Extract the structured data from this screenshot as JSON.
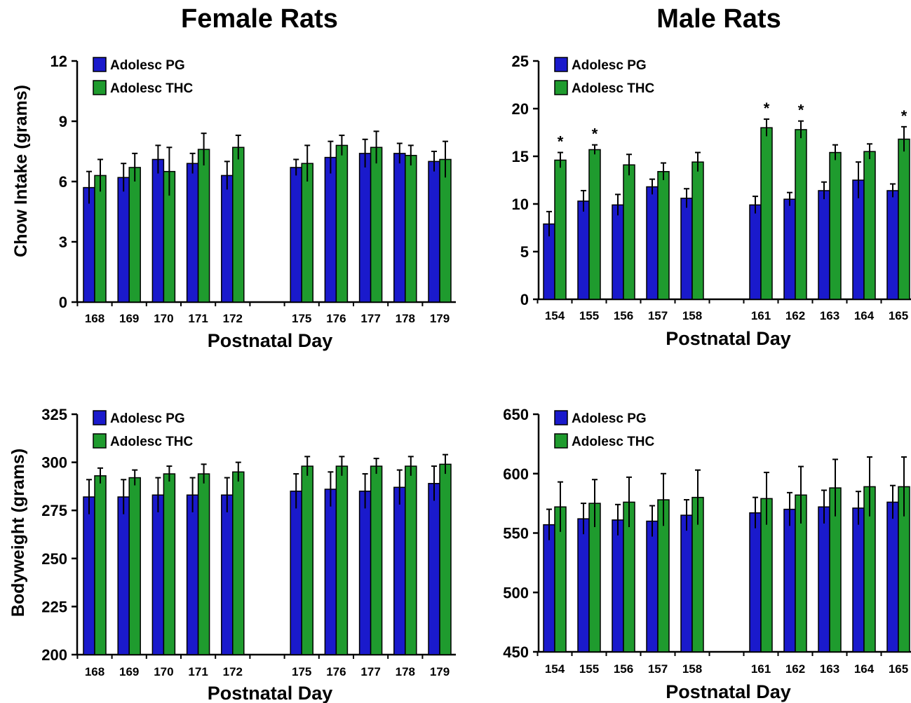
{
  "titles": {
    "female": "Female Rats",
    "male": "Male Rats"
  },
  "colors": {
    "pg": "#1a1acc",
    "thc": "#1f9b2e"
  },
  "chart_data": [
    {
      "id": "female-intake",
      "type": "bar",
      "ylabel": "Chow Intake (grams)",
      "xlabel": "Postnatal Day",
      "ylim": [
        0,
        12
      ],
      "yticks": [
        "0",
        "3",
        "6",
        "9",
        "12"
      ],
      "categories": [
        "168",
        "169",
        "170",
        "171",
        "172",
        "",
        "175",
        "176",
        "177",
        "178",
        "179"
      ],
      "legend": "top-left",
      "series": [
        {
          "name": "Adolesc PG",
          "values": [
            5.7,
            6.2,
            7.1,
            6.9,
            6.3,
            null,
            6.7,
            7.2,
            7.4,
            7.4,
            7.0
          ],
          "errors": [
            0.8,
            0.7,
            0.7,
            0.5,
            0.7,
            null,
            0.4,
            0.8,
            0.7,
            0.5,
            0.5
          ]
        },
        {
          "name": "Adolesc THC",
          "values": [
            6.3,
            6.7,
            6.5,
            7.6,
            7.7,
            null,
            6.9,
            7.8,
            7.7,
            7.3,
            7.1
          ],
          "errors": [
            0.8,
            0.7,
            1.2,
            0.8,
            0.6,
            null,
            0.9,
            0.5,
            0.8,
            0.5,
            0.9
          ]
        }
      ],
      "annotations": []
    },
    {
      "id": "male-intake",
      "type": "bar",
      "ylabel": "",
      "xlabel": "Postnatal Day",
      "ylim": [
        0,
        25
      ],
      "yticks": [
        "0",
        "5",
        "10",
        "15",
        "20",
        "25"
      ],
      "categories": [
        "154",
        "155",
        "156",
        "157",
        "158",
        "",
        "161",
        "162",
        "163",
        "164",
        "165"
      ],
      "legend": "top-left",
      "series": [
        {
          "name": "Adolesc PG",
          "values": [
            7.9,
            10.3,
            9.9,
            11.8,
            10.6,
            null,
            9.9,
            10.5,
            11.4,
            12.5,
            11.4
          ],
          "errors": [
            1.3,
            1.1,
            1.1,
            0.8,
            1.0,
            null,
            0.9,
            0.7,
            0.9,
            1.9,
            0.7
          ]
        },
        {
          "name": "Adolesc THC",
          "values": [
            14.6,
            15.7,
            14.1,
            13.4,
            14.4,
            null,
            18.0,
            17.8,
            15.4,
            15.5,
            16.8
          ],
          "errors": [
            0.8,
            0.5,
            1.1,
            0.9,
            1.0,
            null,
            0.9,
            0.9,
            0.8,
            0.8,
            1.3
          ]
        }
      ],
      "annotations": [
        {
          "category": "154",
          "text": "*"
        },
        {
          "category": "155",
          "text": "*"
        },
        {
          "category": "161",
          "text": "*"
        },
        {
          "category": "162",
          "text": "*"
        },
        {
          "category": "165",
          "text": "*"
        }
      ]
    },
    {
      "id": "female-weight",
      "type": "bar",
      "ylabel": "Bodyweight (grams)",
      "xlabel": "Postnatal Day",
      "ylim": [
        200,
        325
      ],
      "yticks": [
        "200",
        "225",
        "250",
        "275",
        "300",
        "325"
      ],
      "categories": [
        "168",
        "169",
        "170",
        "171",
        "172",
        "",
        "175",
        "176",
        "177",
        "178",
        "179"
      ],
      "legend": "top-left",
      "series": [
        {
          "name": "Adolesc PG",
          "values": [
            282,
            282,
            283,
            283,
            283,
            null,
            285,
            286,
            285,
            287,
            289
          ],
          "errors": [
            9,
            9,
            9,
            9,
            9,
            null,
            9,
            9,
            9,
            9,
            9
          ]
        },
        {
          "name": "Adolesc THC",
          "values": [
            293,
            292,
            294,
            294,
            295,
            null,
            298,
            298,
            298,
            298,
            299
          ],
          "errors": [
            4,
            4,
            4,
            5,
            5,
            null,
            5,
            5,
            4,
            5,
            5
          ]
        }
      ],
      "annotations": []
    },
    {
      "id": "male-weight",
      "type": "bar",
      "ylabel": "",
      "xlabel": "Postnatal Day",
      "ylim": [
        450,
        650
      ],
      "yticks": [
        "450",
        "500",
        "550",
        "600",
        "650"
      ],
      "categories": [
        "154",
        "155",
        "156",
        "157",
        "158",
        "",
        "161",
        "162",
        "163",
        "164",
        "165"
      ],
      "legend": "top-left",
      "series": [
        {
          "name": "Adolesc PG",
          "values": [
            557,
            562,
            561,
            560,
            565,
            null,
            567,
            570,
            572,
            571,
            576
          ],
          "errors": [
            13,
            13,
            13,
            13,
            13,
            null,
            13,
            14,
            14,
            14,
            14
          ]
        },
        {
          "name": "Adolesc THC",
          "values": [
            572,
            575,
            576,
            578,
            580,
            null,
            579,
            582,
            588,
            589,
            589
          ],
          "errors": [
            21,
            20,
            21,
            22,
            23,
            null,
            22,
            24,
            24,
            25,
            25
          ]
        }
      ],
      "annotations": []
    }
  ]
}
